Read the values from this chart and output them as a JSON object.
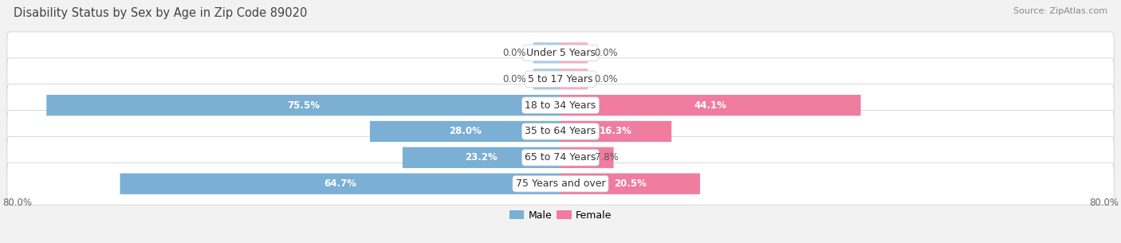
{
  "title": "Disability Status by Sex by Age in Zip Code 89020",
  "source": "Source: ZipAtlas.com",
  "categories": [
    "Under 5 Years",
    "5 to 17 Years",
    "18 to 34 Years",
    "35 to 64 Years",
    "65 to 74 Years",
    "75 Years and over"
  ],
  "male_values": [
    0.0,
    0.0,
    75.5,
    28.0,
    23.2,
    64.7
  ],
  "female_values": [
    0.0,
    0.0,
    44.1,
    16.3,
    7.8,
    20.5
  ],
  "male_color": "#7bafd4",
  "male_color_light": "#aacce8",
  "female_color": "#f07ca0",
  "female_color_light": "#f5b0c8",
  "male_label": "Male",
  "female_label": "Female",
  "axis_max": 80.0,
  "background_color": "#f2f2f2",
  "row_bg_color": "#ffffff",
  "row_border_color": "#d0d0d0",
  "title_color": "#444444",
  "source_color": "#888888",
  "value_color_inside": "#ffffff",
  "value_color_outside": "#555555",
  "zero_bar_width": 4.0,
  "label_fontsize": 9.0,
  "value_fontsize": 8.5,
  "title_fontsize": 10.5
}
